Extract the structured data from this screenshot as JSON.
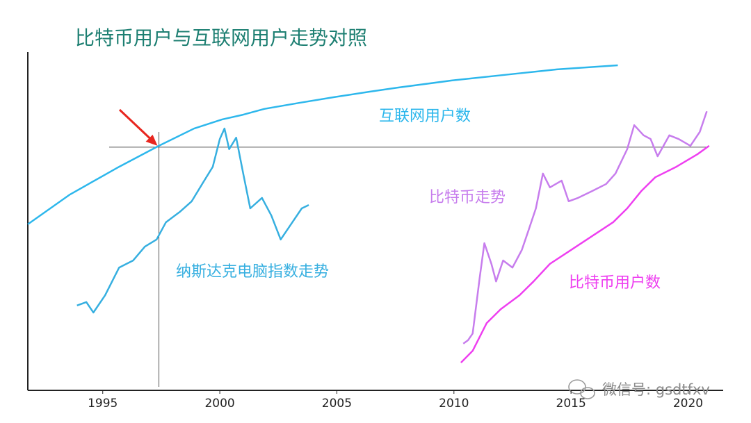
{
  "chart_data": {
    "type": "line",
    "title": "比特币用户与互联网用户走势对照",
    "xlim": [
      1991.8,
      2021.5
    ],
    "ylim": [
      0,
      100
    ],
    "xticks": [
      1995,
      2000,
      2005,
      2010,
      2015,
      2020
    ],
    "reference": {
      "x": 1997.4,
      "y": 71.9
    },
    "watermark": "微信号: gsdtfxv",
    "series": [
      {
        "name": "互联网用户数",
        "color": "#2db7ec",
        "x": [
          1991.8,
          1993.6,
          1995.7,
          1997.4,
          1998.9,
          2000.1,
          2001.0,
          2001.9,
          2003.4,
          2004.9,
          2006.4,
          2007.6,
          2009.9,
          2012.9,
          2014.4,
          2017.0
        ],
        "values": [
          49.1,
          57.9,
          66.1,
          72.3,
          77.4,
          80.1,
          81.5,
          83.2,
          85.0,
          86.7,
          88.3,
          89.5,
          91.6,
          93.8,
          94.9,
          96.1
        ]
      },
      {
        "name": "纳斯达克电脑指数走势",
        "color": "#36afe0",
        "x": [
          1993.9,
          1994.3,
          1994.6,
          1995.1,
          1995.7,
          1996.3,
          1996.8,
          1997.3,
          1997.7,
          1998.3,
          1998.8,
          1999.3,
          1999.7,
          2000.0,
          2000.2,
          2000.4,
          2000.7,
          2001.0,
          2001.3,
          2001.8,
          2002.2,
          2002.6,
          2003.1,
          2003.5,
          2003.8
        ],
        "values": [
          25.1,
          26.1,
          23.0,
          28.1,
          36.3,
          38.4,
          42.5,
          44.6,
          49.7,
          52.8,
          55.9,
          61.6,
          66.1,
          74.3,
          77.4,
          71.3,
          74.7,
          64.1,
          53.8,
          56.9,
          51.7,
          44.6,
          49.7,
          53.8,
          54.8
        ]
      },
      {
        "name": "比特币走势",
        "color": "#c77ded",
        "x": [
          2010.4,
          2010.6,
          2010.8,
          2011.1,
          2011.3,
          2011.6,
          2011.8,
          2012.1,
          2012.5,
          2012.9,
          2013.2,
          2013.5,
          2013.8,
          2014.1,
          2014.6,
          2014.9,
          2015.3,
          2015.9,
          2016.5,
          2016.9,
          2017.4,
          2017.7,
          2018.1,
          2018.4,
          2018.7,
          2019.2,
          2019.6,
          2020.1,
          2020.5,
          2020.8
        ],
        "values": [
          13.8,
          14.8,
          16.8,
          33.3,
          43.5,
          37.4,
          32.2,
          38.4,
          36.3,
          41.5,
          47.6,
          53.8,
          64.1,
          60.0,
          62.0,
          55.9,
          56.9,
          58.9,
          61.0,
          64.1,
          71.3,
          78.4,
          75.4,
          74.3,
          69.2,
          75.4,
          74.3,
          72.3,
          76.4,
          82.5
        ]
      },
      {
        "name": "比特币用户数",
        "color": "#ee3ff0",
        "x": [
          2010.3,
          2010.8,
          2011.4,
          2012.0,
          2012.8,
          2013.4,
          2014.1,
          2015.0,
          2015.9,
          2016.8,
          2017.4,
          2018.0,
          2018.6,
          2019.5,
          2020.4,
          2020.9
        ],
        "values": [
          8.2,
          11.7,
          19.9,
          24.0,
          28.1,
          32.2,
          37.4,
          41.5,
          45.6,
          49.7,
          53.8,
          58.9,
          63.0,
          66.1,
          69.8,
          72.3
        ]
      }
    ]
  }
}
